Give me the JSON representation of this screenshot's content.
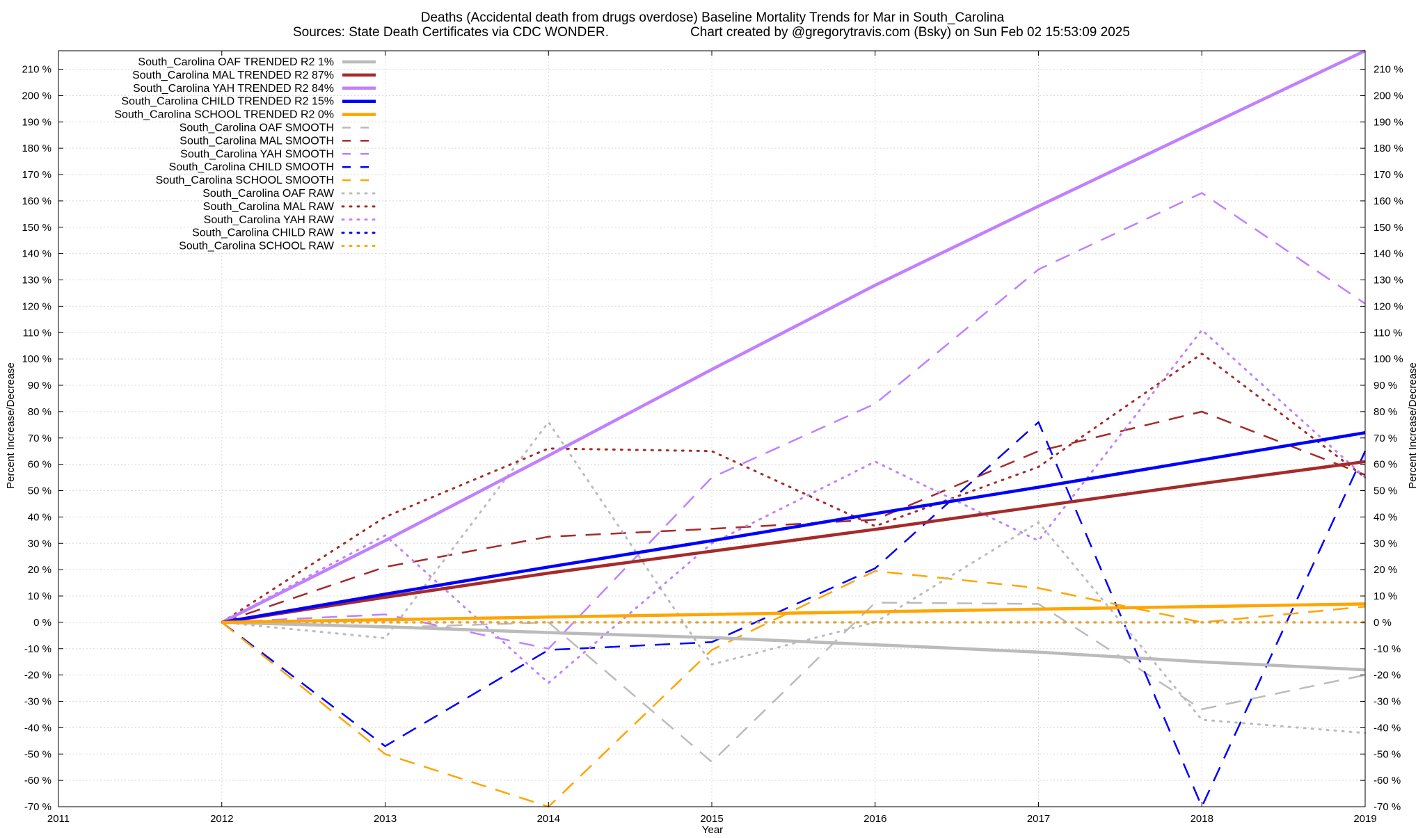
{
  "chart_data": {
    "type": "line",
    "title": "Deaths (Accidental death from drugs overdose)  Baseline Mortality Trends for Mar in South_Carolina",
    "subtitle_left": "Sources: State Death Certificates via CDC WONDER.",
    "subtitle_right": "Chart created by @gregorytravis.com (Bsky) on Sun Feb 02 15:53:09 2025",
    "xlabel": "Year",
    "ylabel_left": "Percent Increase/Decrease",
    "ylabel_right": "Percent Increase/Decrease",
    "xlim": [
      2011,
      2019
    ],
    "ylim": [
      -70,
      217
    ],
    "x_ticks": [
      "2011",
      "2012",
      "2013",
      "2014",
      "2015",
      "2016",
      "2017",
      "2018",
      "2019"
    ],
    "y_ticks": [
      "210 %",
      "200 %",
      "190 %",
      "180 %",
      "170 %",
      "160 %",
      "150 %",
      "140 %",
      "130 %",
      "120 %",
      "110 %",
      "100 %",
      "90 %",
      "80 %",
      "70 %",
      "60 %",
      "50 %",
      "40 %",
      "30 %",
      "20 %",
      "10 %",
      "0 %",
      "-10 %",
      "-20 %",
      "-30 %",
      "-40 %",
      "-50 %",
      "-60 %",
      "-70 %"
    ],
    "grid": true,
    "legend_position": "top-left",
    "x": [
      2012,
      2013,
      2014,
      2015,
      2016,
      2017,
      2018,
      2019
    ],
    "series": [
      {
        "name": "South_Carolina OAF TRENDED R2   1%",
        "style": "trend",
        "color": "#bbbbbb",
        "values": [
          0,
          -1.7,
          -3.9,
          -5.8,
          -8.5,
          -11.3,
          -15.0,
          -18.0
        ]
      },
      {
        "name": "South_Carolina MAL TRENDED R2  87%",
        "style": "trend",
        "color": "#a52a2a",
        "values": [
          0,
          9.5,
          18.7,
          27.0,
          35.3,
          44.0,
          52.7,
          61.0
        ]
      },
      {
        "name": "South_Carolina YAH TRENDED R2  84%",
        "style": "trend",
        "color": "#c080ff",
        "values": [
          0,
          31.0,
          63.3,
          96.0,
          128.0,
          158.0,
          187.5,
          217.0
        ]
      },
      {
        "name": "South_Carolina CHILD TRENDED R2  15%",
        "style": "trend",
        "color": "#0000ff",
        "values": [
          0,
          10.7,
          21.0,
          31.0,
          41.3,
          51.3,
          61.7,
          72.0
        ]
      },
      {
        "name": "South_Carolina SCHOOL TRENDED R2   0%",
        "style": "trend",
        "color": "#ffa500",
        "values": [
          0,
          1.0,
          2.0,
          3.0,
          4.0,
          5.0,
          6.0,
          7.0
        ]
      },
      {
        "name": "South_Carolina OAF SMOOTH",
        "style": "smooth",
        "color": "#bbbbbb",
        "values": [
          0,
          -2.0,
          0,
          -53.0,
          7.5,
          7.0,
          -33.0,
          -20.0
        ]
      },
      {
        "name": "South_Carolina MAL SMOOTH",
        "style": "smooth",
        "color": "#a52a2a",
        "values": [
          0,
          21.0,
          32.5,
          35.5,
          39.0,
          65.0,
          80.0,
          56.0
        ]
      },
      {
        "name": "South_Carolina YAH SMOOTH",
        "style": "smooth",
        "color": "#c080ff",
        "values": [
          0,
          3.0,
          -10.0,
          55.0,
          83.0,
          134.0,
          163.0,
          121.0
        ]
      },
      {
        "name": "South_Carolina CHILD SMOOTH",
        "style": "smooth",
        "color": "#0000ff",
        "values": [
          0,
          -47.0,
          -10.5,
          -7.5,
          20.5,
          76.0,
          -70.0,
          65.0
        ]
      },
      {
        "name": "South_Carolina SCHOOL SMOOTH",
        "style": "smooth",
        "color": "#ffa500",
        "values": [
          0,
          -50.0,
          -70.0,
          -10.5,
          19.5,
          13.0,
          0,
          6.0
        ]
      },
      {
        "name": "South_Carolina OAF RAW",
        "style": "raw",
        "color": "#bbbbbb",
        "values": [
          0,
          -6.0,
          76.0,
          -16.0,
          0,
          38.0,
          -37.0,
          -42.0
        ]
      },
      {
        "name": "South_Carolina MAL RAW",
        "style": "raw",
        "color": "#a52a2a",
        "values": [
          0,
          40.0,
          66.0,
          65.0,
          36.5,
          59.0,
          102.0,
          55.0
        ]
      },
      {
        "name": "South_Carolina YAH RAW",
        "style": "raw",
        "color": "#c080ff",
        "values": [
          0,
          33.0,
          -23.0,
          30.0,
          61.0,
          31.0,
          111.0,
          55.0
        ]
      },
      {
        "name": "South_Carolina CHILD RAW",
        "style": "raw",
        "color": "#0000ff",
        "values": [
          0,
          0,
          0,
          0,
          0,
          0,
          0,
          0
        ]
      },
      {
        "name": "South_Carolina SCHOOL RAW",
        "style": "raw",
        "color": "#ffa500",
        "values": [
          0,
          0,
          0,
          0,
          0,
          0,
          0,
          0
        ]
      }
    ]
  }
}
